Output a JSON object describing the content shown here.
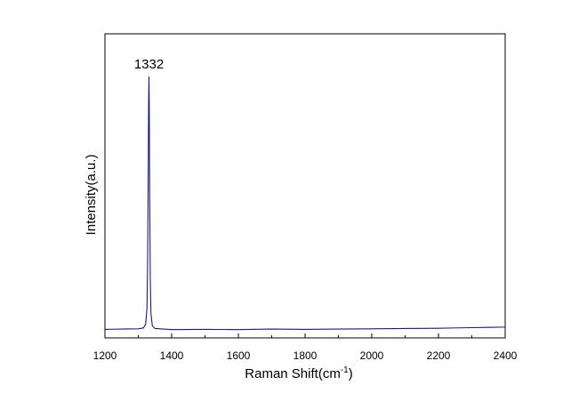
{
  "chart_data": {
    "type": "line",
    "title": "",
    "xlabel": "Raman Shift(cm",
    "xlabel_sup": "-1",
    "xlabel_suffix": ")",
    "ylabel": "Intensity(a.u.)",
    "xlim": [
      1200,
      2400
    ],
    "ylim": [
      0,
      1
    ],
    "x_ticks": [
      1200,
      1400,
      1600,
      1800,
      2000,
      2200,
      2400
    ],
    "x_tick_labels": [
      "1200",
      "1400",
      "1600",
      "1800",
      "2000",
      "2200",
      "2400"
    ],
    "y_ticks": [],
    "grid": false,
    "legend": "none",
    "line_color": "#1a1a7a",
    "peak": {
      "x": 1332,
      "y": 0.9,
      "label": "1332"
    },
    "series": [
      {
        "x": [
          1200,
          1250,
          1300,
          1315,
          1322,
          1326,
          1328,
          1330,
          1331,
          1332,
          1333,
          1334,
          1336,
          1338,
          1342,
          1350,
          1400,
          1500,
          1600,
          1700,
          1800,
          1900,
          2000,
          2100,
          2200,
          2300,
          2350,
          2400
        ],
        "values": [
          0.005,
          0.006,
          0.007,
          0.01,
          0.022,
          0.08,
          0.25,
          0.6,
          0.82,
          0.9,
          0.78,
          0.5,
          0.18,
          0.06,
          0.018,
          0.008,
          0.004,
          0.005,
          0.004,
          0.006,
          0.005,
          0.006,
          0.007,
          0.008,
          0.009,
          0.011,
          0.012,
          0.013
        ]
      }
    ]
  }
}
